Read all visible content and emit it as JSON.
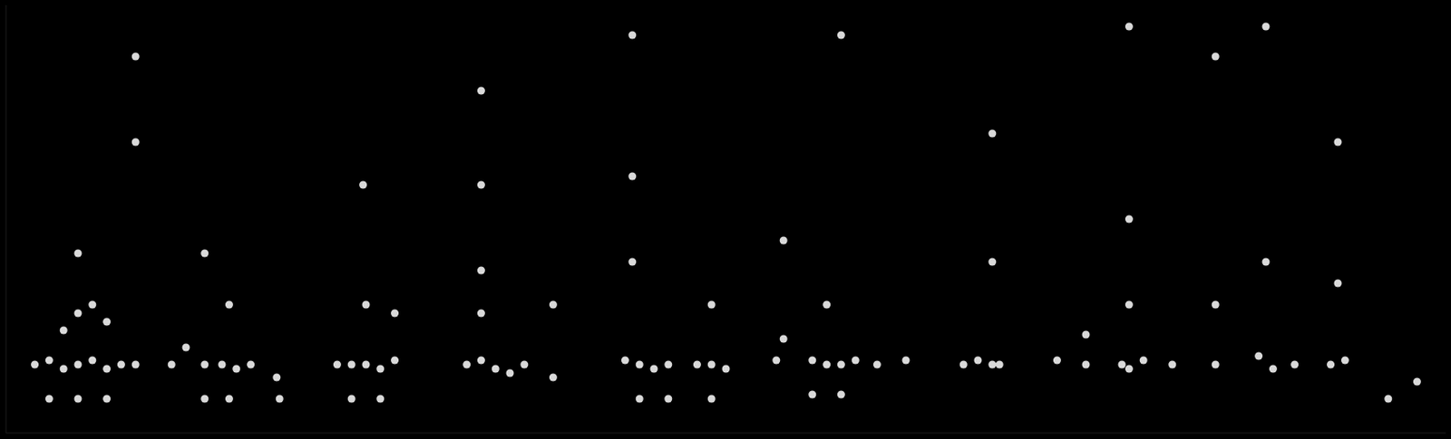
{
  "chart_data": {
    "type": "scatter",
    "x": [
      2,
      3,
      4,
      5,
      6,
      7,
      8,
      9,
      3,
      5,
      7,
      4,
      5,
      6,
      7,
      5,
      9,
      9,
      11.5,
      12.5,
      13.8,
      15,
      16,
      17,
      18.8,
      13.8,
      15.5,
      19,
      15.5,
      13.8,
      23,
      24,
      25,
      26,
      27,
      24,
      26,
      25,
      24.8,
      27,
      32,
      33,
      34,
      35,
      36,
      38,
      33,
      33,
      33,
      33,
      38,
      43,
      44,
      45,
      46,
      48,
      49,
      50,
      44,
      46,
      49,
      43.5,
      43.5,
      43.5,
      49,
      53.5,
      54,
      56,
      57,
      58,
      59,
      60.5,
      62.5,
      56,
      58,
      54,
      58,
      57,
      66.5,
      67.5,
      68.5,
      69,
      68.5,
      68.5,
      73,
      75,
      77.5,
      78,
      79,
      81,
      78,
      78,
      78,
      75,
      84,
      87,
      88,
      89.5,
      92,
      93,
      84,
      87.5,
      92.5,
      84,
      87.5,
      92.5,
      96,
      98
    ],
    "values": [
      16,
      17,
      15,
      16,
      17,
      15,
      16,
      16,
      8,
      8,
      8,
      24,
      28,
      30,
      26,
      42,
      68,
      88,
      16,
      20,
      16,
      16,
      15,
      16,
      13,
      8,
      8,
      8,
      30,
      42,
      16,
      16,
      16,
      15,
      17,
      8,
      8,
      30,
      58,
      28,
      16,
      17,
      15,
      14,
      16,
      13,
      28,
      38,
      58,
      80,
      30,
      17,
      16,
      15,
      16,
      16,
      16,
      15,
      8,
      8,
      8,
      40,
      60,
      93,
      30,
      17,
      22,
      17,
      16,
      16,
      17,
      16,
      17,
      9,
      9,
      45,
      93,
      30,
      16,
      17,
      16,
      16,
      40,
      70,
      17,
      16,
      16,
      15,
      17,
      16,
      30,
      50,
      95,
      23,
      16,
      18,
      15,
      16,
      16,
      17,
      30,
      40,
      35,
      88,
      95,
      68,
      8,
      12
    ],
    "xlim": [
      0,
      100
    ],
    "ylim": [
      0,
      100
    ],
    "color": "#d9d9d9",
    "marker": "circle",
    "grid": false,
    "tick_labels": false
  }
}
